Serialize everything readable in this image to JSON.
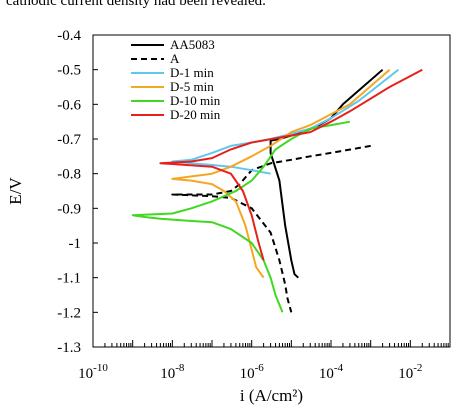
{
  "caption_text": "cathodic current density had been revealed.",
  "chart_data": {
    "type": "line",
    "title": "",
    "xlabel": "i (A/cm²)",
    "ylabel": "E/V",
    "xscale": "log",
    "xlim": [
      1e-10,
      0.1
    ],
    "ylim": [
      -1.3,
      -0.4
    ],
    "x_tick_labels": [
      {
        "base": "10",
        "exp": "-10",
        "value": 1e-10
      },
      {
        "base": "10",
        "exp": "-8",
        "value": 1e-08
      },
      {
        "base": "10",
        "exp": "-6",
        "value": 1e-06
      },
      {
        "base": "10",
        "exp": "-4",
        "value": 0.0001
      },
      {
        "base": "10",
        "exp": "-2",
        "value": 0.01
      }
    ],
    "y_tick_labels": [
      "-0.4",
      "-0.5",
      "-0.6",
      "-0.7",
      "-0.8",
      "-0.9",
      "-1",
      "-1.1",
      "-1.2",
      "-1.3"
    ],
    "y_tick_values": [
      -0.4,
      -0.5,
      -0.6,
      -0.7,
      -0.8,
      -0.9,
      -1.0,
      -1.1,
      -1.2,
      -1.3
    ],
    "grid": false,
    "legend_position": "top-left",
    "series": [
      {
        "name": "AA5083",
        "color": "#000000",
        "dash": "solid",
        "points": [
          [
            0.002,
            -0.5
          ],
          [
            0.0002,
            -0.6
          ],
          [
            0.0001,
            -0.64
          ],
          [
            5e-05,
            -0.66
          ],
          [
            2e-05,
            -0.68
          ],
          [
            1e-05,
            -0.69
          ],
          [
            5e-06,
            -0.7
          ],
          [
            3e-06,
            -0.705
          ],
          [
            3e-06,
            -0.74
          ],
          [
            5e-06,
            -0.82
          ],
          [
            7e-06,
            -0.95
          ],
          [
            1e-05,
            -1.05
          ],
          [
            1.2e-05,
            -1.09
          ],
          [
            1.5e-05,
            -1.1
          ]
        ]
      },
      {
        "name": "A",
        "color": "#000000",
        "dash": "dashed",
        "points": [
          [
            0.001,
            -0.72
          ],
          [
            0.0001,
            -0.74
          ],
          [
            3e-05,
            -0.75
          ],
          [
            1e-05,
            -0.76
          ],
          [
            3e-06,
            -0.77
          ],
          [
            1e-06,
            -0.79
          ],
          [
            5e-07,
            -0.83
          ],
          [
            3e-07,
            -0.85
          ],
          [
            1e-07,
            -0.86
          ],
          [
            1e-08,
            -0.86
          ],
          [
            1e-07,
            -0.865
          ],
          [
            3e-07,
            -0.87
          ],
          [
            1e-06,
            -0.9
          ],
          [
            3e-06,
            -0.97
          ],
          [
            5e-06,
            -1.05
          ],
          [
            7e-06,
            -1.12
          ],
          [
            8e-06,
            -1.16
          ],
          [
            1e-05,
            -1.2
          ]
        ]
      },
      {
        "name": "D-1 min",
        "color": "#5ec8f0",
        "dash": "solid",
        "points": [
          [
            0.005,
            -0.5
          ],
          [
            0.0005,
            -0.59
          ],
          [
            0.0001,
            -0.64
          ],
          [
            3e-05,
            -0.67
          ],
          [
            1e-05,
            -0.685
          ],
          [
            3e-06,
            -0.7
          ],
          [
            1e-06,
            -0.71
          ],
          [
            3e-07,
            -0.72
          ],
          [
            1e-07,
            -0.74
          ],
          [
            3e-08,
            -0.76
          ],
          [
            1e-08,
            -0.765
          ],
          [
            3e-08,
            -0.77
          ],
          [
            1e-07,
            -0.775
          ],
          [
            3e-07,
            -0.78
          ],
          [
            1e-06,
            -0.79
          ],
          [
            3e-06,
            -0.8
          ]
        ]
      },
      {
        "name": "D-5 min",
        "color": "#f5a623",
        "dash": "solid",
        "points": [
          [
            0.003,
            -0.5
          ],
          [
            0.0003,
            -0.6
          ],
          [
            3e-05,
            -0.66
          ],
          [
            1e-05,
            -0.68
          ],
          [
            3e-06,
            -0.72
          ],
          [
            1e-06,
            -0.75
          ],
          [
            3e-07,
            -0.78
          ],
          [
            1e-07,
            -0.8
          ],
          [
            1e-08,
            -0.815
          ],
          [
            3e-08,
            -0.82
          ],
          [
            1e-07,
            -0.83
          ],
          [
            2e-07,
            -0.85
          ],
          [
            4e-07,
            -0.88
          ],
          [
            7e-07,
            -0.95
          ],
          [
            1e-06,
            -1.02
          ],
          [
            1.3e-06,
            -1.07
          ],
          [
            2e-06,
            -1.1
          ]
        ]
      },
      {
        "name": "D-10 min",
        "color": "#40d820",
        "dash": "solid",
        "points": [
          [
            0.0003,
            -0.65
          ],
          [
            0.0001,
            -0.66
          ],
          [
            3e-05,
            -0.67
          ],
          [
            1e-05,
            -0.7
          ],
          [
            4e-06,
            -0.73
          ],
          [
            2e-06,
            -0.78
          ],
          [
            1e-06,
            -0.82
          ],
          [
            4e-07,
            -0.85
          ],
          [
            1e-07,
            -0.88
          ],
          [
            3e-08,
            -0.9
          ],
          [
            1e-08,
            -0.915
          ],
          [
            1e-09,
            -0.92
          ],
          [
            2e-09,
            -0.925
          ],
          [
            5e-09,
            -0.93
          ],
          [
            2e-08,
            -0.935
          ],
          [
            1e-07,
            -0.94
          ],
          [
            3e-07,
            -0.96
          ],
          [
            1e-06,
            -1.0
          ],
          [
            2e-06,
            -1.05
          ],
          [
            3e-06,
            -1.1
          ],
          [
            4e-06,
            -1.15
          ],
          [
            6e-06,
            -1.2
          ]
        ]
      },
      {
        "name": "D-20 min",
        "color": "#e8201c",
        "dash": "solid",
        "points": [
          [
            0.02,
            -0.5
          ],
          [
            0.003,
            -0.55
          ],
          [
            0.0003,
            -0.62
          ],
          [
            0.0001,
            -0.65
          ],
          [
            3e-05,
            -0.68
          ],
          [
            1e-05,
            -0.69
          ],
          [
            1e-06,
            -0.71
          ],
          [
            3e-07,
            -0.73
          ],
          [
            1e-07,
            -0.755
          ],
          [
            3e-08,
            -0.765
          ],
          [
            5e-09,
            -0.77
          ],
          [
            1e-08,
            -0.772
          ],
          [
            1e-07,
            -0.78
          ],
          [
            3e-07,
            -0.8
          ],
          [
            6e-07,
            -0.85
          ],
          [
            1e-06,
            -0.92
          ],
          [
            1.5e-06,
            -1.0
          ],
          [
            2e-06,
            -1.05
          ]
        ]
      }
    ]
  }
}
